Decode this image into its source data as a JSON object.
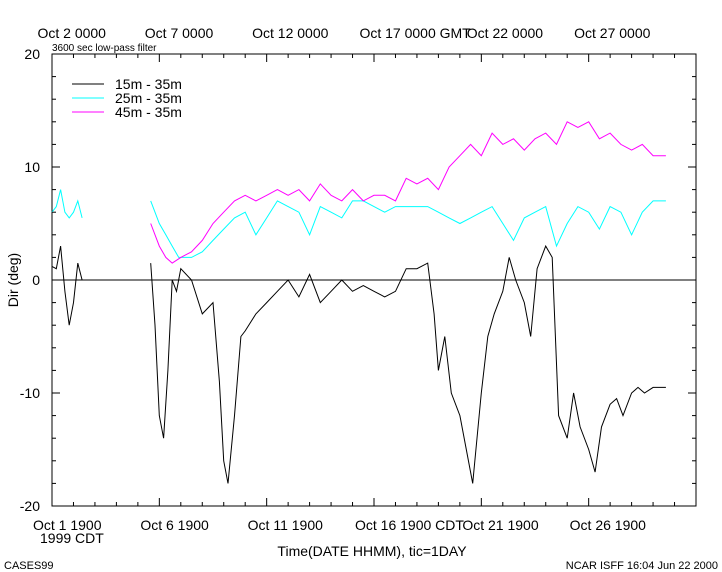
{
  "chart_data": {
    "type": "line",
    "title": "",
    "subtitle": "3600 sec low-pass filter",
    "xlabel": "Time(DATE HHMM), tic=1DAY",
    "ylabel": "Dir (deg)",
    "ylim": [
      -20,
      20
    ],
    "yticks": [
      -20,
      -10,
      0,
      10,
      20
    ],
    "xlim": [
      "1999-10-01 19:00 CDT",
      "1999-10-31 19:00 CDT"
    ],
    "x_unit": "days",
    "bottom_tick_labels": [
      "Oct  1 1900",
      "Oct  6 1900",
      "Oct 11 1900",
      "Oct 16 1900 CDT",
      "Oct 21 1900",
      "Oct 26 1900"
    ],
    "bottom_year_label": "1999 CDT",
    "top_tick_labels": [
      "Oct  2 0000",
      "Oct  7 0000",
      "Oct 12 0000",
      "Oct 17 0000 GMT",
      "Oct 22 0000",
      "Oct 27 0000"
    ],
    "grid": false,
    "zero_line": true,
    "legend_position": "top-left",
    "footer_left": "CASES99",
    "footer_right": "NCAR ISFF 16:04 Jun 22 2000",
    "series": [
      {
        "name": "15m  - 35m",
        "color": "#000000",
        "points": [
          [
            0.0,
            1.2
          ],
          [
            0.2,
            1.0
          ],
          [
            0.4,
            3.0
          ],
          [
            0.6,
            -1.0
          ],
          [
            0.8,
            -4.0
          ],
          [
            1.0,
            -2.0
          ],
          [
            1.2,
            1.5
          ],
          [
            1.4,
            0.0
          ],
          [
            4.6,
            1.5
          ],
          [
            4.8,
            -4.0
          ],
          [
            5.0,
            -12.0
          ],
          [
            5.2,
            -14.0
          ],
          [
            5.4,
            -8.0
          ],
          [
            5.6,
            0.0
          ],
          [
            5.8,
            -1.0
          ],
          [
            6.0,
            1.0
          ],
          [
            6.5,
            0.0
          ],
          [
            7.0,
            -3.0
          ],
          [
            7.5,
            -2.0
          ],
          [
            7.8,
            -9.0
          ],
          [
            8.0,
            -16.0
          ],
          [
            8.2,
            -18.0
          ],
          [
            8.5,
            -12.0
          ],
          [
            8.8,
            -5.0
          ],
          [
            9.0,
            -4.5
          ],
          [
            9.5,
            -3.0
          ],
          [
            10.0,
            -2.0
          ],
          [
            10.5,
            -1.0
          ],
          [
            11.0,
            0.0
          ],
          [
            11.5,
            -1.5
          ],
          [
            12.0,
            0.5
          ],
          [
            12.5,
            -2.0
          ],
          [
            13.0,
            -1.0
          ],
          [
            13.5,
            0.0
          ],
          [
            14.0,
            -1.0
          ],
          [
            14.5,
            -0.5
          ],
          [
            15.0,
            -1.0
          ],
          [
            15.5,
            -1.5
          ],
          [
            16.0,
            -1.0
          ],
          [
            16.5,
            1.0
          ],
          [
            17.0,
            1.0
          ],
          [
            17.5,
            1.5
          ],
          [
            17.8,
            -3.0
          ],
          [
            18.0,
            -8.0
          ],
          [
            18.3,
            -5.0
          ],
          [
            18.6,
            -10.0
          ],
          [
            19.0,
            -12.0
          ],
          [
            19.3,
            -15.0
          ],
          [
            19.6,
            -18.0
          ],
          [
            20.0,
            -10.0
          ],
          [
            20.3,
            -5.0
          ],
          [
            20.6,
            -3.0
          ],
          [
            21.0,
            -1.0
          ],
          [
            21.3,
            2.0
          ],
          [
            21.6,
            0.0
          ],
          [
            22.0,
            -2.0
          ],
          [
            22.3,
            -5.0
          ],
          [
            22.6,
            1.0
          ],
          [
            23.0,
            3.0
          ],
          [
            23.3,
            2.0
          ],
          [
            23.6,
            -12.0
          ],
          [
            24.0,
            -14.0
          ],
          [
            24.3,
            -10.0
          ],
          [
            24.6,
            -13.0
          ],
          [
            25.0,
            -15.0
          ],
          [
            25.3,
            -17.0
          ],
          [
            25.6,
            -13.0
          ],
          [
            26.0,
            -11.0
          ],
          [
            26.3,
            -10.5
          ],
          [
            26.6,
            -12.0
          ],
          [
            27.0,
            -10.0
          ],
          [
            27.3,
            -9.5
          ],
          [
            27.6,
            -10.0
          ],
          [
            28.0,
            -9.5
          ],
          [
            28.6,
            -9.5
          ]
        ]
      },
      {
        "name": "25m  - 35m",
        "color": "#00ffff",
        "points": [
          [
            0.0,
            6.0
          ],
          [
            0.2,
            6.5
          ],
          [
            0.4,
            8.0
          ],
          [
            0.6,
            6.0
          ],
          [
            0.8,
            5.5
          ],
          [
            1.0,
            6.0
          ],
          [
            1.2,
            7.0
          ],
          [
            1.4,
            5.5
          ],
          [
            4.6,
            7.0
          ],
          [
            4.8,
            6.0
          ],
          [
            5.0,
            5.0
          ],
          [
            5.3,
            4.0
          ],
          [
            5.6,
            3.0
          ],
          [
            5.9,
            2.0
          ],
          [
            6.2,
            2.0
          ],
          [
            6.5,
            2.0
          ],
          [
            7.0,
            2.5
          ],
          [
            7.5,
            3.5
          ],
          [
            8.0,
            4.5
          ],
          [
            8.5,
            5.5
          ],
          [
            9.0,
            6.0
          ],
          [
            9.5,
            4.0
          ],
          [
            10.0,
            5.5
          ],
          [
            10.5,
            7.0
          ],
          [
            11.0,
            6.5
          ],
          [
            11.5,
            6.0
          ],
          [
            12.0,
            4.0
          ],
          [
            12.5,
            6.5
          ],
          [
            13.0,
            6.0
          ],
          [
            13.5,
            5.5
          ],
          [
            14.0,
            7.0
          ],
          [
            14.5,
            7.0
          ],
          [
            15.0,
            6.5
          ],
          [
            15.5,
            6.0
          ],
          [
            16.0,
            6.5
          ],
          [
            16.5,
            6.5
          ],
          [
            17.0,
            6.5
          ],
          [
            17.5,
            6.5
          ],
          [
            18.0,
            6.0
          ],
          [
            18.5,
            5.5
          ],
          [
            19.0,
            5.0
          ],
          [
            19.5,
            5.5
          ],
          [
            20.0,
            6.0
          ],
          [
            20.5,
            6.5
          ],
          [
            21.0,
            5.0
          ],
          [
            21.5,
            3.5
          ],
          [
            22.0,
            5.5
          ],
          [
            22.5,
            6.0
          ],
          [
            23.0,
            6.5
          ],
          [
            23.5,
            3.0
          ],
          [
            24.0,
            5.0
          ],
          [
            24.5,
            6.5
          ],
          [
            25.0,
            6.0
          ],
          [
            25.5,
            4.5
          ],
          [
            26.0,
            6.5
          ],
          [
            26.5,
            6.0
          ],
          [
            27.0,
            4.0
          ],
          [
            27.5,
            6.0
          ],
          [
            28.0,
            7.0
          ],
          [
            28.6,
            7.0
          ]
        ]
      },
      {
        "name": "45m  - 35m",
        "color": "#ff00ff",
        "points": [
          [
            4.6,
            5.0
          ],
          [
            4.8,
            4.0
          ],
          [
            5.0,
            3.0
          ],
          [
            5.3,
            2.0
          ],
          [
            5.6,
            1.5
          ],
          [
            6.0,
            2.0
          ],
          [
            6.5,
            2.5
          ],
          [
            7.0,
            3.5
          ],
          [
            7.5,
            5.0
          ],
          [
            8.0,
            6.0
          ],
          [
            8.5,
            7.0
          ],
          [
            9.0,
            7.5
          ],
          [
            9.5,
            7.0
          ],
          [
            10.0,
            7.5
          ],
          [
            10.5,
            8.0
          ],
          [
            11.0,
            7.5
          ],
          [
            11.5,
            8.0
          ],
          [
            12.0,
            7.0
          ],
          [
            12.5,
            8.5
          ],
          [
            13.0,
            7.5
          ],
          [
            13.5,
            7.0
          ],
          [
            14.0,
            8.0
          ],
          [
            14.5,
            7.0
          ],
          [
            15.0,
            7.5
          ],
          [
            15.5,
            7.5
          ],
          [
            16.0,
            7.0
          ],
          [
            16.5,
            9.0
          ],
          [
            17.0,
            8.5
          ],
          [
            17.5,
            9.0
          ],
          [
            18.0,
            8.0
          ],
          [
            18.5,
            10.0
          ],
          [
            19.0,
            11.0
          ],
          [
            19.5,
            12.0
          ],
          [
            20.0,
            11.0
          ],
          [
            20.5,
            13.0
          ],
          [
            21.0,
            12.0
          ],
          [
            21.5,
            12.5
          ],
          [
            22.0,
            11.5
          ],
          [
            22.5,
            12.5
          ],
          [
            23.0,
            13.0
          ],
          [
            23.5,
            12.0
          ],
          [
            24.0,
            14.0
          ],
          [
            24.5,
            13.5
          ],
          [
            25.0,
            14.0
          ],
          [
            25.5,
            12.5
          ],
          [
            26.0,
            13.0
          ],
          [
            26.5,
            12.0
          ],
          [
            27.0,
            11.5
          ],
          [
            27.5,
            12.0
          ],
          [
            28.0,
            11.0
          ],
          [
            28.6,
            11.0
          ]
        ]
      }
    ]
  }
}
